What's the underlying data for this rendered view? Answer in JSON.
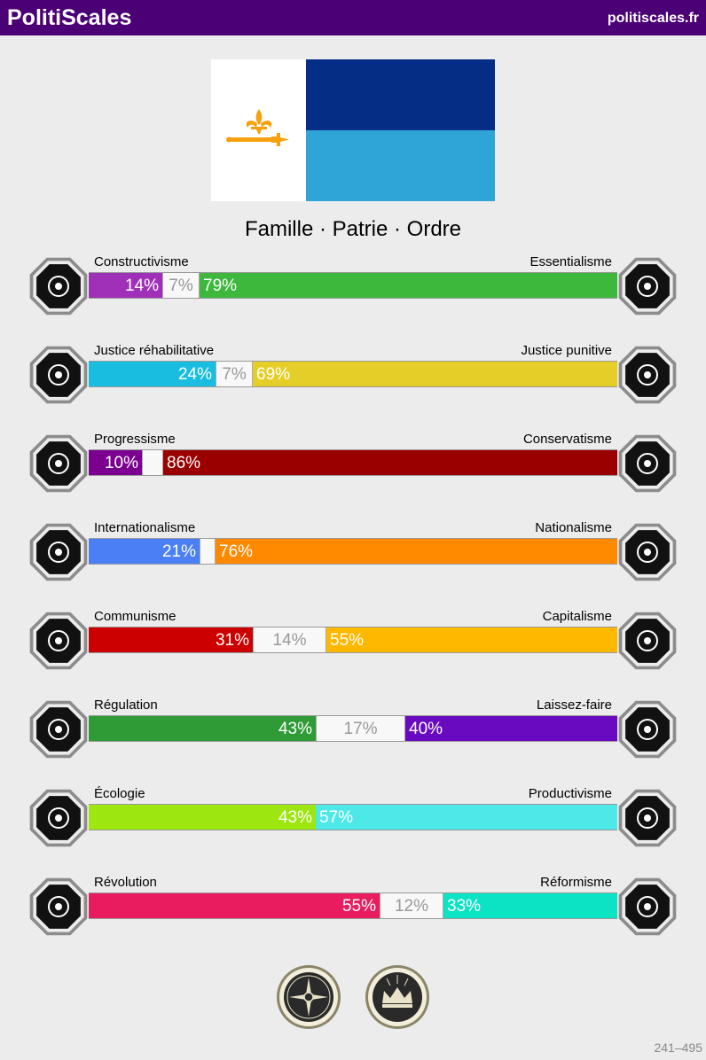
{
  "header": {
    "brand": "PolitiScales",
    "site": "politiscales.fr"
  },
  "flag": {
    "left_color": "#ffffff",
    "top_right_color": "#062d86",
    "bottom_right_color": "#2fa4d6",
    "emblem_color": "#f8a10e",
    "emblem_icon": "fleur-de-lis-sword-icon"
  },
  "slogan": "Famille · Patrie · Ordre",
  "axes": [
    {
      "left_label": "Constructivisme",
      "right_label": "Essentialisme",
      "left_value": 14,
      "mid_value": 7,
      "right_value": 79,
      "left_text": "14%",
      "mid_text": "7%",
      "right_text": "79%",
      "left_color": "#a030b8",
      "right_color": "#3db83d",
      "left_icon": "eye-grid-icon",
      "right_icon": "flower-icon"
    },
    {
      "left_label": "Justice réhabilitative",
      "right_label": "Justice punitive",
      "left_value": 24,
      "mid_value": 7,
      "right_value": 69,
      "left_text": "24%",
      "mid_text": "7%",
      "right_text": "69%",
      "left_color": "#19bde0",
      "right_color": "#e6ce28",
      "left_icon": "handshake-icon",
      "right_icon": "prison-bars-icon"
    },
    {
      "left_label": "Progressisme",
      "right_label": "Conservatisme",
      "left_value": 10,
      "mid_value": 4,
      "right_value": 86,
      "left_text": "10%",
      "mid_text": "",
      "right_text": "86%",
      "left_color": "#7b0090",
      "right_color": "#9a0000",
      "left_icon": "rocket-icon",
      "right_icon": "quill-icon"
    },
    {
      "left_label": "Internationalisme",
      "right_label": "Nationalisme",
      "left_value": 21,
      "mid_value": 3,
      "right_value": 76,
      "left_text": "21%",
      "mid_text": "",
      "right_text": "76%",
      "left_color": "#4a7ff6",
      "right_color": "#ff8a00",
      "left_icon": "globe-laurel-icon",
      "right_icon": "flag-icon"
    },
    {
      "left_label": "Communisme",
      "right_label": "Capitalisme",
      "left_value": 31,
      "mid_value": 14,
      "right_value": 55,
      "left_text": "31%",
      "mid_text": "14%",
      "right_text": "55%",
      "left_color": "#cc0000",
      "right_color": "#ffb800",
      "left_icon": "hammer-sickle-icon",
      "right_icon": "money-bag-icon"
    },
    {
      "left_label": "Régulation",
      "right_label": "Laissez-faire",
      "left_value": 43,
      "mid_value": 17,
      "right_value": 40,
      "left_text": "43%",
      "mid_text": "17%",
      "right_text": "40%",
      "left_color": "#2e9b36",
      "right_color": "#6a0ac0",
      "left_icon": "ruler-compass-icon",
      "right_icon": "butterfly-icon"
    },
    {
      "left_label": "Écologie",
      "right_label": "Productivisme",
      "left_value": 43,
      "mid_value": 0,
      "right_value": 57,
      "left_text": "43%",
      "mid_text": "",
      "right_text": "57%",
      "left_color": "#9de610",
      "right_color": "#4ee8e8",
      "left_icon": "sprout-icon",
      "right_icon": "gear-icon"
    },
    {
      "left_label": "Révolution",
      "right_label": "Réformisme",
      "left_value": 55,
      "mid_value": 12,
      "right_value": 33,
      "left_text": "55%",
      "mid_text": "12%",
      "right_text": "33%",
      "left_color": "#e81c5e",
      "right_color": "#0ce2c4",
      "left_icon": "fist-icon",
      "right_icon": "ballot-box-icon"
    }
  ],
  "badges": [
    {
      "icon": "compass-seal-icon"
    },
    {
      "icon": "crown-seal-icon"
    }
  ],
  "footer_code": "241–495"
}
